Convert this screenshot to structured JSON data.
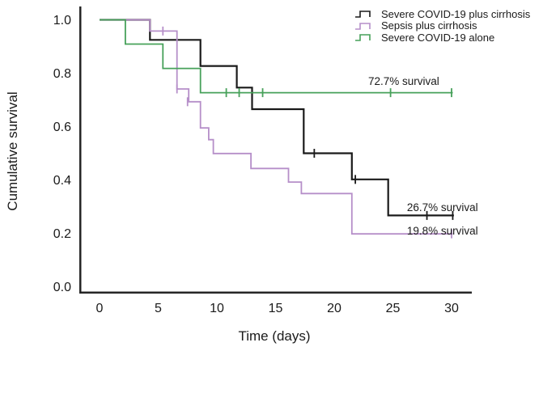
{
  "chart_data": {
    "type": "line",
    "subtype": "kaplan-meier-step-survival",
    "title": "",
    "xlabel": "Time (days)",
    "ylabel": "Cumulative survival",
    "xlim": [
      0,
      31.7
    ],
    "ylim": [
      0.0,
      1.05
    ],
    "x_ticks": [
      0,
      5,
      10,
      15,
      20,
      25,
      30
    ],
    "y_ticks": [
      1.0,
      0.8,
      0.6,
      0.4,
      0.2,
      0.0
    ],
    "grid": false,
    "legend_position": "top-right",
    "axis_color": "#262626",
    "series": [
      {
        "name": "Severe COVID-19 plus cirrhosis",
        "color": "#1a1a1a",
        "final_survival_pct": 26.7,
        "points": [
          [
            0,
            1.0
          ],
          [
            4.3,
            1.0
          ],
          [
            4.3,
            0.925
          ],
          [
            8.6,
            0.925
          ],
          [
            8.6,
            0.827
          ],
          [
            11.7,
            0.827
          ],
          [
            11.7,
            0.746
          ],
          [
            13.0,
            0.746
          ],
          [
            13.0,
            0.665
          ],
          [
            17.4,
            0.665
          ],
          [
            17.4,
            0.5
          ],
          [
            21.5,
            0.5
          ],
          [
            21.5,
            0.402
          ],
          [
            24.6,
            0.402
          ],
          [
            24.6,
            0.267
          ],
          [
            30.2,
            0.267
          ]
        ],
        "censor_marks": [
          [
            18.3,
            0.5
          ],
          [
            21.8,
            0.402
          ],
          [
            27.9,
            0.267
          ],
          [
            30.1,
            0.267
          ]
        ]
      },
      {
        "name": "Sepsis plus cirrhosis",
        "color": "#b68fc9",
        "final_survival_pct": 19.8,
        "points": [
          [
            0,
            1.0
          ],
          [
            4.3,
            1.0
          ],
          [
            4.3,
            0.958
          ],
          [
            6.6,
            0.958
          ],
          [
            6.6,
            0.741
          ],
          [
            7.6,
            0.741
          ],
          [
            7.6,
            0.693
          ],
          [
            8.6,
            0.693
          ],
          [
            8.6,
            0.595
          ],
          [
            9.3,
            0.595
          ],
          [
            9.3,
            0.551
          ],
          [
            9.7,
            0.551
          ],
          [
            9.7,
            0.499
          ],
          [
            12.9,
            0.499
          ],
          [
            12.9,
            0.443
          ],
          [
            16.1,
            0.443
          ],
          [
            16.1,
            0.392
          ],
          [
            17.2,
            0.392
          ],
          [
            17.2,
            0.349
          ],
          [
            21.5,
            0.349
          ],
          [
            21.5,
            0.198
          ],
          [
            30.1,
            0.198
          ]
        ],
        "censor_marks": [
          [
            5.4,
            0.958
          ],
          [
            6.6,
            0.741
          ],
          [
            7.5,
            0.693
          ],
          [
            30.0,
            0.198
          ]
        ]
      },
      {
        "name": "Severe COVID-19 alone",
        "color": "#47a15a",
        "final_survival_pct": 72.7,
        "points": [
          [
            0,
            1.0
          ],
          [
            2.2,
            1.0
          ],
          [
            2.2,
            0.909
          ],
          [
            5.4,
            0.909
          ],
          [
            5.4,
            0.818
          ],
          [
            8.6,
            0.818
          ],
          [
            8.6,
            0.727
          ],
          [
            30.1,
            0.727
          ]
        ],
        "censor_marks": [
          [
            10.8,
            0.727
          ],
          [
            11.9,
            0.727
          ],
          [
            13.9,
            0.727
          ],
          [
            24.8,
            0.727
          ],
          [
            30.0,
            0.727
          ]
        ]
      }
    ],
    "annotations": [
      {
        "text": "72.7% survival",
        "day": 22.9,
        "survival_baseline": 0.756
      },
      {
        "text": "26.7% survival",
        "day": 26.2,
        "survival_baseline": 0.283
      },
      {
        "text": "19.8% survival",
        "day": 26.2,
        "survival_baseline": 0.195
      }
    ]
  }
}
